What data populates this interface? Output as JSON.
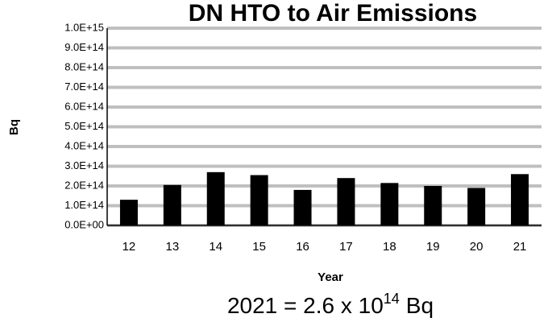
{
  "chart_data": {
    "type": "bar",
    "title": "DN HTO to Air Emissions",
    "y_label": "Bq",
    "x_label": "Year",
    "annotation": {
      "base": "2021 = 2.6 x 10",
      "exponent": "14",
      "unit": "Bq"
    },
    "categories": [
      "12",
      "13",
      "14",
      "15",
      "16",
      "17",
      "18",
      "19",
      "20",
      "21"
    ],
    "values": [
      130000000000000,
      205000000000000,
      270000000000000,
      255000000000000,
      180000000000000,
      240000000000000,
      215000000000000,
      200000000000000,
      190000000000000,
      260000000000000
    ],
    "color": "#000000",
    "ylim": [
      0,
      1000000000000000
    ],
    "yticks": [
      {
        "value": 0,
        "label": "0.0E+00"
      },
      {
        "value": 100000000000000,
        "label": "1.0E+14"
      },
      {
        "value": 200000000000000,
        "label": "2.0E+14"
      },
      {
        "value": 300000000000000,
        "label": "3.0E+14"
      },
      {
        "value": 400000000000000,
        "label": "4.0E+14"
      },
      {
        "value": 500000000000000,
        "label": "5.0E+14"
      },
      {
        "value": 600000000000000,
        "label": "6.0E+14"
      },
      {
        "value": 700000000000000,
        "label": "7.0E+14"
      },
      {
        "value": 800000000000000,
        "label": "8.0E+14"
      },
      {
        "value": 900000000000000,
        "label": "9.0E+14"
      },
      {
        "value": 1000000000000000,
        "label": "1.0E+15"
      }
    ],
    "grid": true
  }
}
